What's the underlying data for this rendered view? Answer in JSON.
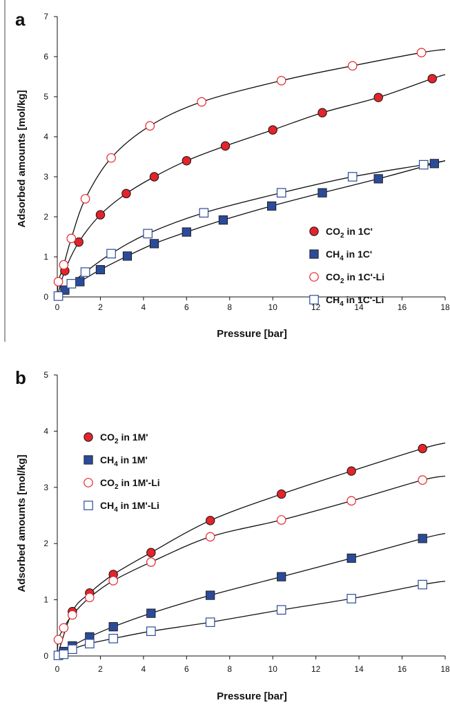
{
  "chart_data": [
    {
      "panel_label": "a",
      "type": "scatter",
      "xlabel": "Pressure [bar]",
      "ylabel": "Adsorbed amounts [mol/kg]",
      "xlim": [
        0,
        18
      ],
      "ylim": [
        0,
        7
      ],
      "xticks": [
        0,
        2,
        4,
        6,
        8,
        10,
        12,
        14,
        16,
        18
      ],
      "yticks": [
        0,
        1,
        2,
        3,
        4,
        5,
        6,
        7
      ],
      "grid": false,
      "legend_position": "bottom-right",
      "series": [
        {
          "name_parts": [
            "CO",
            "2",
            " in 1C'"
          ],
          "marker": "filled-circle",
          "color": "#e3242b",
          "x": [
            0.35,
            1.0,
            2.0,
            3.2,
            4.5,
            6.0,
            7.8,
            10.0,
            12.3,
            14.9,
            17.4
          ],
          "y": [
            0.65,
            1.37,
            2.05,
            2.58,
            3.0,
            3.4,
            3.77,
            4.17,
            4.6,
            4.98,
            5.45
          ],
          "fit": [
            [
              0,
              0
            ],
            [
              0.35,
              0.65
            ],
            [
              1.0,
              1.37
            ],
            [
              2.0,
              2.05
            ],
            [
              3.2,
              2.58
            ],
            [
              4.5,
              3.0
            ],
            [
              6.0,
              3.4
            ],
            [
              7.8,
              3.77
            ],
            [
              10.0,
              4.17
            ],
            [
              12.3,
              4.6
            ],
            [
              14.9,
              4.98
            ],
            [
              17.4,
              5.45
            ],
            [
              18,
              5.55
            ]
          ]
        },
        {
          "name_parts": [
            "CH",
            "4",
            " in 1C'"
          ],
          "marker": "filled-square",
          "color": "#2b4a97",
          "x": [
            0.35,
            1.05,
            2.0,
            3.25,
            4.5,
            6.0,
            7.7,
            9.95,
            12.3,
            14.9,
            17.5
          ],
          "y": [
            0.17,
            0.38,
            0.68,
            1.02,
            1.33,
            1.62,
            1.92,
            2.27,
            2.6,
            2.95,
            3.33
          ],
          "fit": [
            [
              0,
              0
            ],
            [
              0.35,
              0.17
            ],
            [
              1.05,
              0.38
            ],
            [
              2.0,
              0.68
            ],
            [
              3.25,
              1.02
            ],
            [
              4.5,
              1.33
            ],
            [
              6.0,
              1.62
            ],
            [
              7.7,
              1.92
            ],
            [
              9.95,
              2.27
            ],
            [
              12.3,
              2.6
            ],
            [
              14.9,
              2.95
            ],
            [
              17.5,
              3.33
            ],
            [
              18,
              3.4
            ]
          ]
        },
        {
          "name_parts": [
            "CO",
            "2",
            " in 1C'-Li"
          ],
          "marker": "open-circle",
          "color": "#e3242b",
          "x": [
            0.05,
            0.3,
            0.65,
            1.3,
            2.5,
            4.3,
            6.7,
            10.4,
            13.7,
            16.9
          ],
          "y": [
            0.38,
            0.8,
            1.46,
            2.45,
            3.47,
            4.27,
            4.87,
            5.4,
            5.77,
            6.1
          ],
          "fit": [
            [
              0,
              0
            ],
            [
              0.05,
              0.38
            ],
            [
              0.3,
              0.8
            ],
            [
              0.65,
              1.46
            ],
            [
              1.3,
              2.45
            ],
            [
              2.5,
              3.47
            ],
            [
              4.3,
              4.27
            ],
            [
              6.7,
              4.87
            ],
            [
              10.4,
              5.4
            ],
            [
              13.7,
              5.77
            ],
            [
              16.9,
              6.1
            ],
            [
              18,
              6.18
            ]
          ]
        },
        {
          "name_parts": [
            "CH",
            "4",
            " in 1C'-Li"
          ],
          "marker": "open-square",
          "color": "#2b4a97",
          "x": [
            0.05,
            0.65,
            1.3,
            2.5,
            4.2,
            6.8,
            10.4,
            13.7,
            17.0
          ],
          "y": [
            0.02,
            0.33,
            0.62,
            1.08,
            1.58,
            2.1,
            2.6,
            3.0,
            3.3
          ],
          "fit": [
            [
              0,
              0
            ],
            [
              0.65,
              0.33
            ],
            [
              1.3,
              0.62
            ],
            [
              2.5,
              1.08
            ],
            [
              4.2,
              1.58
            ],
            [
              6.8,
              2.1
            ],
            [
              10.4,
              2.6
            ],
            [
              13.7,
              3.0
            ],
            [
              17.0,
              3.3
            ],
            [
              18,
              3.4
            ]
          ]
        }
      ]
    },
    {
      "panel_label": "b",
      "type": "scatter",
      "xlabel": "Pressure [bar]",
      "ylabel": "Adsorbed amounts [mol/kg]",
      "xlim": [
        0,
        18
      ],
      "ylim": [
        0,
        5
      ],
      "xticks": [
        0,
        2,
        4,
        6,
        8,
        10,
        12,
        14,
        16,
        18
      ],
      "yticks": [
        0,
        1,
        2,
        3,
        4,
        5
      ],
      "grid": false,
      "legend_position": "top-left",
      "series": [
        {
          "name_parts": [
            "CO",
            "2",
            " in 1M'"
          ],
          "marker": "filled-circle",
          "color": "#e3242b",
          "x": [
            0.7,
            1.5,
            2.6,
            4.35,
            7.1,
            10.4,
            13.65,
            16.95
          ],
          "y": [
            0.79,
            1.12,
            1.45,
            1.84,
            2.41,
            2.88,
            3.29,
            3.69
          ],
          "fit": [
            [
              0,
              0
            ],
            [
              0.7,
              0.79
            ],
            [
              1.5,
              1.12
            ],
            [
              2.6,
              1.45
            ],
            [
              4.35,
              1.84
            ],
            [
              7.1,
              2.41
            ],
            [
              10.4,
              2.88
            ],
            [
              13.65,
              3.29
            ],
            [
              16.95,
              3.69
            ],
            [
              18,
              3.79
            ]
          ]
        },
        {
          "name_parts": [
            "CH",
            "4",
            " in 1M'"
          ],
          "marker": "filled-square",
          "color": "#2b4a97",
          "x": [
            0.3,
            0.7,
            1.5,
            2.6,
            4.35,
            7.1,
            10.4,
            13.65,
            16.95
          ],
          "y": [
            0.08,
            0.18,
            0.34,
            0.52,
            0.76,
            1.08,
            1.41,
            1.74,
            2.09
          ],
          "fit": [
            [
              0,
              0
            ],
            [
              0.3,
              0.08
            ],
            [
              0.7,
              0.18
            ],
            [
              1.5,
              0.34
            ],
            [
              2.6,
              0.52
            ],
            [
              4.35,
              0.76
            ],
            [
              7.1,
              1.08
            ],
            [
              10.4,
              1.41
            ],
            [
              13.65,
              1.74
            ],
            [
              16.95,
              2.09
            ],
            [
              18,
              2.18
            ]
          ]
        },
        {
          "name_parts": [
            "CO",
            "2",
            " in 1M'-Li"
          ],
          "marker": "open-circle",
          "color": "#e3242b",
          "x": [
            0.05,
            0.3,
            0.7,
            1.5,
            2.6,
            4.35,
            7.1,
            10.4,
            13.65,
            16.95
          ],
          "y": [
            0.29,
            0.5,
            0.73,
            1.04,
            1.34,
            1.67,
            2.12,
            2.42,
            2.76,
            3.13
          ],
          "fit": [
            [
              0,
              0
            ],
            [
              0.05,
              0.29
            ],
            [
              0.3,
              0.5
            ],
            [
              0.7,
              0.73
            ],
            [
              1.5,
              1.04
            ],
            [
              2.6,
              1.34
            ],
            [
              4.35,
              1.67
            ],
            [
              7.1,
              2.12
            ],
            [
              10.4,
              2.42
            ],
            [
              13.65,
              2.76
            ],
            [
              16.95,
              3.13
            ],
            [
              18,
              3.2
            ]
          ]
        },
        {
          "name_parts": [
            "CH",
            "4",
            " in 1M'-Li"
          ],
          "marker": "open-square",
          "color": "#2b4a97",
          "x": [
            0.05,
            0.3,
            0.7,
            1.5,
            2.6,
            4.35,
            7.1,
            10.4,
            13.65,
            16.95
          ],
          "y": [
            0.01,
            0.03,
            0.12,
            0.22,
            0.31,
            0.44,
            0.6,
            0.82,
            1.02,
            1.27
          ],
          "fit": [
            [
              0,
              0
            ],
            [
              0.3,
              0.03
            ],
            [
              0.7,
              0.12
            ],
            [
              1.5,
              0.22
            ],
            [
              2.6,
              0.31
            ],
            [
              4.35,
              0.44
            ],
            [
              7.1,
              0.6
            ],
            [
              10.4,
              0.82
            ],
            [
              13.65,
              1.02
            ],
            [
              16.95,
              1.27
            ],
            [
              18,
              1.33
            ]
          ]
        }
      ]
    }
  ]
}
